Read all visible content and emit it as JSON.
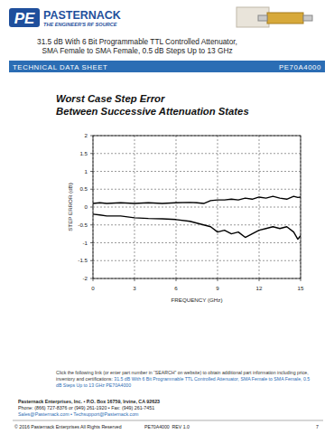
{
  "header": {
    "logo": "PE",
    "brand": "PASTERNACK",
    "tagline": "THE ENGINEER'S RF SOURCE",
    "title_lines": [
      "31.5 dB With 6 Bit Programmable TTL Controlled Attenuator,",
      "SMA Female to SMA Female, 0.5 dB Steps Up to 13 GHz"
    ],
    "bar_left": "TECHNICAL DATA SHEET",
    "bar_right": "PE70A4000"
  },
  "chart_data": {
    "type": "line",
    "title": "Worst Case Step Error",
    "subtitle": "Between Successive Attenuation States",
    "x_label": "FREQUENCY (GHz)",
    "y_label": "STEP ERROR (dB)",
    "x": [
      0,
      0.5,
      1,
      2,
      3,
      4,
      5,
      6,
      7,
      7.5,
      8,
      8.5,
      9,
      9.5,
      10,
      10.5,
      11,
      11.5,
      12,
      12.5,
      13,
      13.5,
      14,
      14.5,
      14.8,
      15
    ],
    "series": [
      {
        "color": "#000000",
        "values": [
          0.1,
          0.12,
          0.1,
          0.12,
          0.1,
          0.12,
          0.1,
          0.12,
          0.13,
          0.12,
          0.1,
          0.18,
          0.2,
          0.2,
          0.22,
          0.2,
          0.25,
          0.22,
          0.28,
          0.25,
          0.3,
          0.25,
          0.22,
          0.3,
          0.27,
          0.28
        ]
      },
      {
        "color": "#000000",
        "values": [
          -0.2,
          -0.22,
          -0.25,
          -0.25,
          -0.3,
          -0.32,
          -0.33,
          -0.35,
          -0.4,
          -0.45,
          -0.5,
          -0.55,
          -0.7,
          -0.65,
          -0.75,
          -0.7,
          -0.85,
          -0.75,
          -0.65,
          -0.6,
          -0.55,
          -0.6,
          -0.55,
          -0.7,
          -0.9,
          -0.8
        ]
      }
    ],
    "xlim": [
      0,
      15
    ],
    "xticks": [
      0,
      3,
      6,
      9,
      12,
      15
    ],
    "ylim": [
      -2,
      2
    ],
    "yticks": [
      -2,
      -1.5,
      -1,
      -0.5,
      0,
      0.5,
      1,
      1.5,
      2
    ],
    "grid": true
  },
  "footer": {
    "note": "Click the following link (or enter part number in “SEARCH” on website) to obtain additional part information including price, inventory and certifications: ",
    "link": "31.5 dB With 6 Bit Programmable TTL Controlled Attenuator, SMA Female to SMA Female, 0.5 dB Steps Up to 13 GHz PE70A4000",
    "company": "Pasternack Enterprises, Inc. • P.O. Box 16759, Irvine, CA 92623",
    "phone": "Phone: (866) 727-8376 or (949) 261-1920 • Fax: (949) 261-7451",
    "emails": "Sales@Pasternack.com • Techsupport@Pasternack.com",
    "copyright": "© 2016 Pasternack Enterprises All Rights Reserved",
    "doc": "PE70A4000  REV 1.0",
    "page": "7"
  }
}
